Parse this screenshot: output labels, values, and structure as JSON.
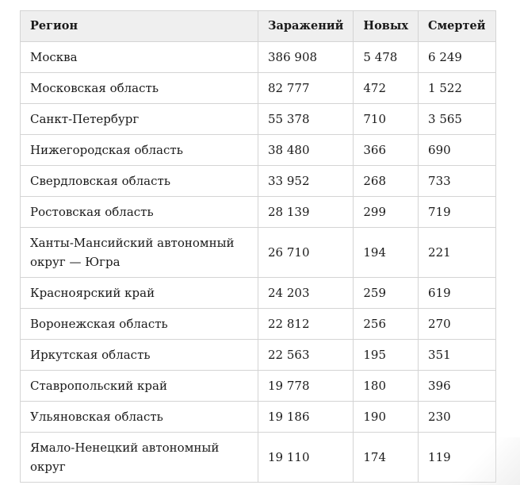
{
  "table": {
    "headers": [
      "Регион",
      "Заражений",
      "Новых",
      "Смертей"
    ],
    "rows": [
      {
        "region": "Москва",
        "cases": "386 908",
        "new": "5 478",
        "deaths": "6 249"
      },
      {
        "region": "Московская область",
        "cases": "82 777",
        "new": "472",
        "deaths": "1 522"
      },
      {
        "region": "Санкт-Петербург",
        "cases": "55 378",
        "new": "710",
        "deaths": "3 565"
      },
      {
        "region": "Нижегородская область",
        "cases": "38 480",
        "new": "366",
        "deaths": "690"
      },
      {
        "region": "Свердловская область",
        "cases": "33 952",
        "new": "268",
        "deaths": "733"
      },
      {
        "region": "Ростовская область",
        "cases": "28 139",
        "new": "299",
        "deaths": "719"
      },
      {
        "region": "Ханты-Мансийский автономный округ — Югра",
        "cases": "26 710",
        "new": "194",
        "deaths": "221"
      },
      {
        "region": "Красноярский край",
        "cases": "24 203",
        "new": "259",
        "deaths": "619"
      },
      {
        "region": "Воронежская область",
        "cases": "22 812",
        "new": "256",
        "deaths": "270"
      },
      {
        "region": "Иркутская область",
        "cases": "22 563",
        "new": "195",
        "deaths": "351"
      },
      {
        "region": "Ставропольский край",
        "cases": "19 778",
        "new": "180",
        "deaths": "396"
      },
      {
        "region": "Ульяновская область",
        "cases": "19 186",
        "new": "190",
        "deaths": "230"
      },
      {
        "region": "Ямало-Ненецкий автономный округ",
        "cases": "19 110",
        "new": "174",
        "deaths": "119"
      }
    ]
  }
}
